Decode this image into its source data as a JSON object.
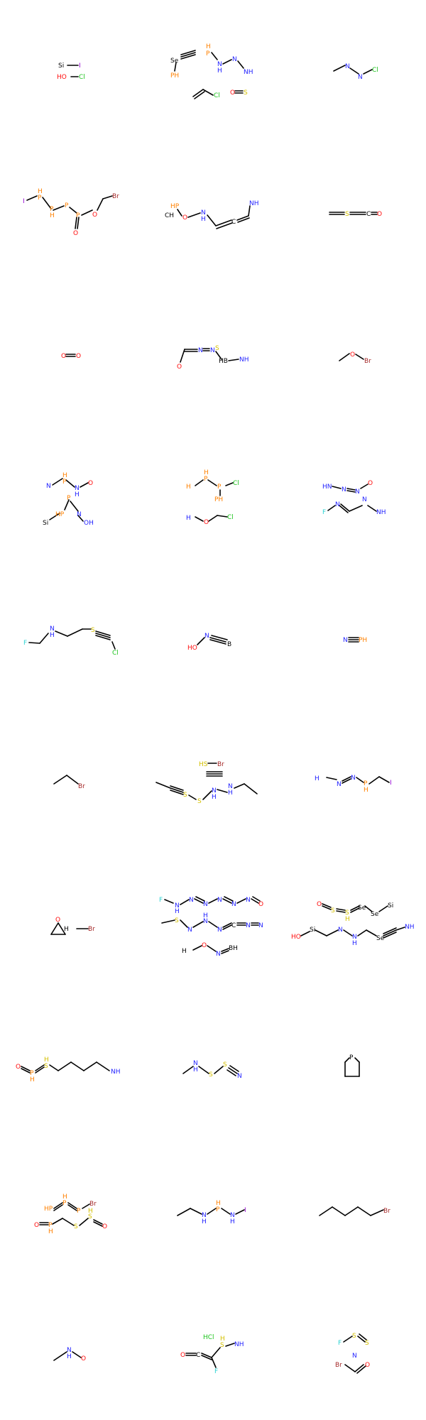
{
  "colors": {
    "bond": "#000000",
    "O": "#ff0d0d",
    "N": "#1f1fff",
    "S": "#d4c000",
    "P": "#ff8000",
    "Cl": "#1ec41e",
    "Br": "#a52a2a",
    "I": "#9400d3",
    "F": "#2fd3d3",
    "C": "#000000",
    "Si": "#000000",
    "Se": "#000000",
    "B": "#000000"
  },
  "labels": {
    "r1c1": {
      "si": "Si",
      "i": "I",
      "ho": "HO",
      "cl": "Cl"
    },
    "r1c2": {
      "se": "Se",
      "ph": "PH",
      "h": "H",
      "p": "P",
      "n1": "N",
      "nh": "H",
      "n2": "N",
      "nh2": "NH",
      "cl": "Cl",
      "o": "O",
      "s": "S"
    },
    "r1c3": {
      "n1": "N",
      "n2": "N",
      "cl": "Cl"
    },
    "r2c1": {
      "i": "I",
      "p1": "P",
      "h1": "H",
      "p2": "P",
      "h2": "H",
      "p3": "P",
      "o": "O",
      "br": "Br",
      "om": "O"
    },
    "r2c2": {
      "hp": "HP",
      "ch": "CH",
      "o": "O",
      "n": "N",
      "h": "H",
      "c": "C",
      "nh": "NH"
    },
    "r2c3": {
      "s": "S",
      "c": "C",
      "o": "O"
    },
    "r3c1": {
      "o1": "O",
      "o2": "O"
    },
    "r3c2": {
      "n1": "N",
      "n2": "N",
      "s": "S",
      "o": "O",
      "hb": "HB",
      "nh": "NH"
    },
    "r3c3": {
      "o": "O",
      "br": "Br"
    },
    "r4c1": {
      "p": "P",
      "h": "H",
      "n1": "N",
      "n2": "N",
      "o": "O",
      "nh": "H",
      "p2": "P",
      "hp": "HP",
      "n3": "N",
      "si": "Si",
      "oh": "OH"
    },
    "r4c2": {
      "h2p": "H",
      "p1": "P",
      "h": "H",
      "p2": "P",
      "cl": "Cl",
      "ph3": "PH",
      "h2n": "H",
      "o": "O",
      "cl2": "Cl"
    },
    "r4c3": {
      "hn": "HN",
      "n1": "N",
      "n2": "N",
      "o": "O",
      "f": "F",
      "n3": "N",
      "n4": "N",
      "nh2": "NH"
    },
    "r5c1": {
      "f": "F",
      "n": "N",
      "h": "H",
      "s": "S",
      "cl": "Cl"
    },
    "r5c2": {
      "ho": "HO",
      "n": "N",
      "b": "B"
    },
    "r5c3": {
      "n": "N",
      "ph": "PH"
    },
    "r6c1": {
      "br": "Br"
    },
    "r6c2": {
      "hs": "HS",
      "br": "Br",
      "s1": "S",
      "s2": "S",
      "n1": "N",
      "h": "H",
      "n2": "N",
      "h2": "H"
    },
    "r6c3": {
      "h2n": "H",
      "n1": "N",
      "n2": "N",
      "p": "P",
      "h": "H",
      "i": "I"
    },
    "r7c1": {
      "o": "O",
      "h2b": "H",
      "br": "Br"
    },
    "r7c2": {
      "f": "F",
      "n1": "N",
      "n2": "N",
      "n3": "N",
      "n4": "N",
      "n5": "N",
      "o": "O",
      "s": "S",
      "n6": "N",
      "h": "H",
      "n7": "N",
      "h2": "H",
      "n8": "N",
      "c": "C",
      "n9": "N",
      "n10": "N",
      "h2b": "H",
      "o2": "O",
      "n11": "N",
      "bh": "BH"
    },
    "r7c3": {
      "o": "O",
      "s1": "S",
      "s2": "S",
      "h": "H",
      "se1": "Se",
      "se2": "Se",
      "si": "Si",
      "ho": "HO",
      "si2": "Si",
      "n1": "N",
      "n2": "N",
      "h2": "H",
      "se3": "Se",
      "nh2": "NH"
    },
    "r8c1": {
      "o": "O",
      "p": "P",
      "h": "H",
      "s": "S",
      "h2": "H",
      "nh2": "NH"
    },
    "r8c2": {
      "n": "N",
      "h": "H",
      "s1": "S",
      "s2": "S",
      "n2": "N"
    },
    "r8c3": {
      "p": "P"
    },
    "r9c1": {
      "hp": "HP",
      "p1": "P",
      "h1": "H",
      "p2": "P",
      "br": "Br",
      "o": "O",
      "p3": "P",
      "h": "H",
      "s1": "S",
      "s2": "S",
      "h2": "H",
      "o2": "O"
    },
    "r9c2": {
      "n1": "N",
      "h1": "H",
      "p": "P",
      "h2": "H",
      "n2": "N",
      "h3": "H",
      "i": "I"
    },
    "r9c3": {
      "br": "Br"
    },
    "r10c1": {
      "n": "N",
      "h": "H",
      "o": "O"
    },
    "r10c2": {
      "hcl": "HCl",
      "o": "O",
      "c": "C",
      "s": "S",
      "h": "H",
      "nh": "NH",
      "f": "F"
    },
    "r10c3": {
      "f": "F",
      "s1": "S",
      "s2": "S",
      "n": "N",
      "br": "Br",
      "o": "O"
    }
  }
}
